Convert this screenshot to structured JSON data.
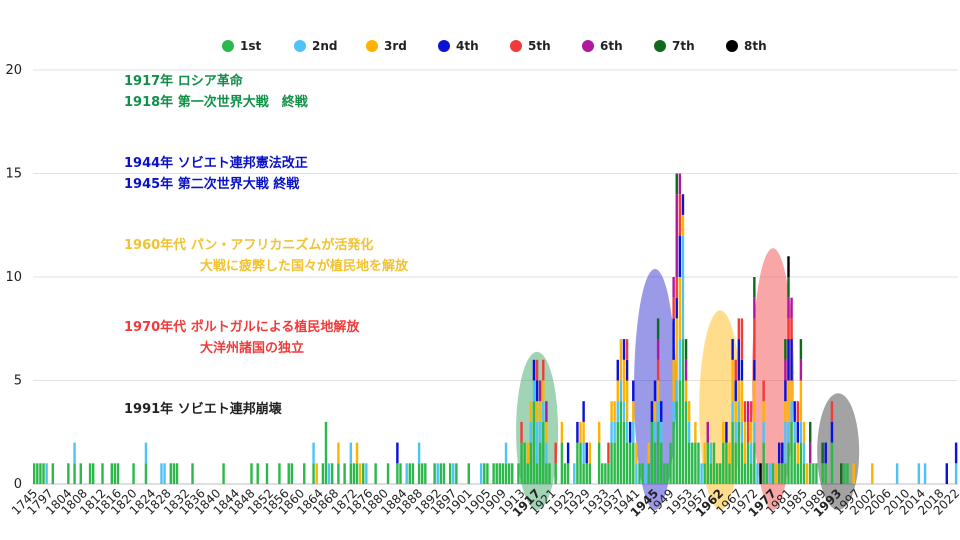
{
  "chart_data": {
    "type": "bar",
    "stacked": true,
    "title": "",
    "xlabel": "",
    "ylabel": "",
    "ylim": [
      0,
      20
    ],
    "yticks": [
      0,
      5,
      10,
      15,
      20
    ],
    "grid": "horizontal",
    "legend_position": "top",
    "xtick_labels": [
      "1745",
      "1797",
      "1804",
      "1808",
      "1812",
      "1816",
      "1820",
      "1824",
      "1828",
      "1832",
      "1836",
      "1840",
      "1844",
      "1848",
      "1852",
      "1856",
      "1860",
      "1864",
      "1868",
      "1872",
      "1876",
      "1880",
      "1884",
      "1888",
      "1892",
      "1897",
      "1901",
      "1905",
      "1909",
      "1913",
      "1917",
      "1921",
      "1925",
      "1929",
      "1933",
      "1937",
      "1941",
      "1945",
      "1949",
      "1953",
      "1957",
      "1962",
      "1967",
      "1972",
      "1977",
      "1981",
      "1985",
      "1989",
      "1993",
      "1997",
      "2002",
      "2006",
      "2010",
      "2014",
      "2018",
      "2022"
    ],
    "highlighted_ticks": [
      "1917",
      "1945",
      "1962",
      "1977",
      "1993"
    ],
    "series": [
      {
        "name": "1st",
        "color": "#2DB84B"
      },
      {
        "name": "2nd",
        "color": "#4FC3F7"
      },
      {
        "name": "3rd",
        "color": "#FFB300"
      },
      {
        "name": "4th",
        "color": "#0A12D6"
      },
      {
        "name": "5th",
        "color": "#F23A3A"
      },
      {
        "name": "6th",
        "color": "#B0189E"
      },
      {
        "name": "7th",
        "color": "#106A1C"
      },
      {
        "name": "8th",
        "color": "#000000"
      }
    ],
    "bars": [
      [
        1
      ],
      [
        1
      ],
      [
        1
      ],
      [
        1
      ],
      [
        0,
        1
      ],
      [
        0
      ],
      [
        1
      ],
      [
        0
      ],
      [
        0
      ],
      [
        0
      ],
      [
        0
      ],
      [
        1
      ],
      [
        0
      ],
      [
        1,
        1
      ],
      [
        0
      ],
      [
        1
      ],
      [
        0
      ],
      [
        0
      ],
      [
        1
      ],
      [
        1
      ],
      [
        0
      ],
      [
        0
      ],
      [
        1
      ],
      [
        0
      ],
      [
        0
      ],
      [
        1
      ],
      [
        1
      ],
      [
        1
      ],
      [
        0
      ],
      [
        0
      ],
      [
        0
      ],
      [
        0
      ],
      [
        1
      ],
      [
        0
      ],
      [
        0
      ],
      [
        0
      ],
      [
        1,
        1
      ],
      [
        0
      ],
      [
        0
      ],
      [
        0
      ],
      [
        0
      ],
      [
        0,
        1
      ],
      [
        0,
        1
      ],
      [
        0
      ],
      [
        1
      ],
      [
        1
      ],
      [
        1
      ],
      [
        0
      ],
      [
        0
      ],
      [
        0
      ],
      [
        0
      ],
      [
        1
      ],
      [
        0
      ],
      [
        0
      ],
      [
        0
      ],
      [
        0
      ],
      [
        0
      ],
      [
        0
      ],
      [
        0
      ],
      [
        0
      ],
      [
        0
      ],
      [
        1
      ],
      [
        0
      ],
      [
        0
      ],
      [
        0
      ],
      [
        0
      ],
      [
        0
      ],
      [
        0
      ],
      [
        0
      ],
      [
        0
      ],
      [
        1
      ],
      [
        0
      ],
      [
        1
      ],
      [
        0
      ],
      [
        0
      ],
      [
        1
      ],
      [
        0
      ],
      [
        0
      ],
      [
        0
      ],
      [
        1
      ],
      [
        0
      ],
      [
        0
      ],
      [
        1
      ],
      [
        1
      ],
      [
        0
      ],
      [
        0
      ],
      [
        0
      ],
      [
        1
      ],
      [
        0
      ],
      [
        0
      ],
      [
        1,
        1
      ],
      [
        0,
        0,
        1
      ],
      [
        0
      ],
      [
        1
      ],
      [
        3
      ],
      [
        0,
        1
      ],
      [
        1
      ],
      [
        0
      ],
      [
        1,
        0,
        1
      ],
      [
        0
      ],
      [
        1
      ],
      [
        0
      ],
      [
        1,
        1
      ],
      [
        1
      ],
      [
        1,
        0,
        1
      ],
      [
        0,
        0,
        1
      ],
      [
        1
      ],
      [
        0,
        1
      ],
      [
        0
      ],
      [
        0
      ],
      [
        1
      ],
      [
        0
      ],
      [
        0
      ],
      [
        0
      ],
      [
        1
      ],
      [
        0
      ],
      [
        0
      ],
      [
        1,
        0,
        0,
        1
      ],
      [
        1
      ],
      [
        0
      ],
      [
        0,
        1
      ],
      [
        1
      ],
      [
        1
      ],
      [
        0
      ],
      [
        1,
        1
      ],
      [
        1
      ],
      [
        1
      ],
      [
        0
      ],
      [
        0
      ],
      [
        1
      ],
      [
        0,
        1
      ],
      [
        1
      ],
      [
        1
      ],
      [
        0
      ],
      [
        1
      ],
      [
        0,
        1
      ],
      [
        1
      ],
      [
        0
      ],
      [
        0
      ],
      [
        0
      ],
      [
        1
      ],
      [
        0
      ],
      [
        0
      ],
      [
        0
      ],
      [
        0,
        1
      ],
      [
        1
      ],
      [
        1
      ],
      [
        0
      ],
      [
        1
      ],
      [
        1
      ],
      [
        1
      ],
      [
        1
      ],
      [
        1,
        1
      ],
      [
        1
      ],
      [
        1
      ],
      [
        0
      ],
      [
        1
      ],
      [
        2,
        0,
        0,
        0,
        1
      ],
      [
        2
      ],
      [
        1,
        0,
        1
      ],
      [
        2,
        1,
        1
      ],
      [
        4,
        1,
        0,
        1
      ],
      [
        1,
        2,
        1,
        1,
        1
      ],
      [
        2,
        1,
        1,
        0,
        0,
        1
      ],
      [
        3,
        1,
        1,
        0,
        1
      ],
      [
        1,
        1,
        1,
        0,
        0,
        1
      ],
      [
        1
      ],
      [
        0
      ],
      [
        1,
        0,
        0,
        0,
        1
      ],
      [
        0
      ],
      [
        2,
        0,
        1
      ],
      [
        1
      ],
      [
        1,
        0,
        0,
        1
      ],
      [
        0
      ],
      [
        0,
        1
      ],
      [
        2,
        0,
        0,
        1
      ],
      [
        2,
        0,
        1
      ],
      [
        1,
        1,
        1,
        1
      ],
      [
        1,
        0,
        0,
        1
      ],
      [
        1,
        0,
        1
      ],
      [
        0
      ],
      [
        0
      ],
      [
        2,
        0,
        1
      ],
      [
        1
      ],
      [
        1
      ],
      [
        1,
        0,
        0,
        0,
        1
      ],
      [
        2,
        1,
        1,
        0
      ],
      [
        2,
        1,
        1,
        0
      ],
      [
        3,
        1,
        1,
        1
      ],
      [
        4,
        1,
        2
      ],
      [
        3,
        1,
        2,
        1
      ],
      [
        2,
        1,
        2,
        1,
        1
      ],
      [
        2,
        0,
        0,
        1
      ],
      [
        2,
        1,
        1,
        1
      ],
      [
        0,
        1,
        1
      ],
      [
        1
      ],
      [
        1
      ],
      [
        0,
        1
      ],
      [
        1,
        0,
        1
      ],
      [
        3,
        0,
        0,
        1
      ],
      [
        2,
        1,
        1,
        1
      ],
      [
        3,
        1,
        1,
        0,
        1,
        1,
        1
      ],
      [
        2,
        1,
        0,
        1
      ],
      [
        1
      ],
      [
        1
      ],
      [
        2
      ],
      [
        3,
        1,
        2,
        2,
        1,
        1
      ],
      [
        4,
        1,
        3,
        1,
        1,
        4,
        1
      ],
      [
        5,
        2,
        3,
        2,
        2,
        1
      ],
      [
        7,
        5,
        1,
        1
      ],
      [
        4,
        0,
        1,
        0,
        0,
        1,
        1
      ],
      [
        2,
        1,
        1
      ],
      [
        2
      ],
      [
        2,
        0,
        1
      ],
      [
        2
      ],
      [
        0,
        1
      ],
      [
        1,
        0,
        1
      ],
      [
        2,
        0,
        0,
        0,
        0,
        1
      ],
      [
        1,
        1
      ],
      [
        2
      ],
      [
        1
      ],
      [
        1
      ],
      [
        2,
        0,
        1
      ],
      [
        2,
        0,
        0,
        1
      ],
      [
        1,
        0,
        1
      ],
      [
        3,
        1,
        2,
        1
      ],
      [
        2,
        1,
        1,
        1,
        1
      ],
      [
        3,
        1,
        1,
        2,
        1
      ],
      [
        2,
        1,
        2,
        1,
        2
      ],
      [
        1,
        0,
        2,
        0,
        1
      ],
      [
        2,
        0,
        0,
        0,
        1,
        1
      ],
      [
        1,
        1,
        1,
        0,
        1
      ],
      [
        2,
        1,
        2,
        1,
        2,
        1,
        1
      ],
      [
        0,
        1
      ],
      [
        0,
        0,
        0,
        0,
        0,
        0,
        0,
        1
      ],
      [
        2,
        1,
        1,
        0,
        1
      ],
      [
        1
      ],
      [
        0,
        1
      ],
      [
        1
      ],
      [
        0,
        0,
        1
      ],
      [
        1,
        0,
        0,
        1
      ],
      [
        1,
        0,
        0,
        1
      ],
      [
        1,
        2,
        1,
        1,
        0,
        1,
        1
      ],
      [
        2,
        1,
        2,
        2,
        1,
        1,
        1,
        1
      ],
      [
        3,
        1,
        1,
        2,
        1,
        1
      ],
      [
        2,
        1,
        0,
        1
      ],
      [
        1,
        0,
        1,
        1,
        1
      ],
      [
        2,
        1,
        2,
        0,
        0,
        1,
        1
      ],
      [
        1,
        1,
        1
      ],
      [
        0,
        0,
        1
      ],
      [
        1,
        0,
        0,
        0,
        0,
        1,
        1
      ],
      [
        1
      ],
      [
        1
      ],
      [
        0
      ],
      [
        1,
        0,
        0,
        0,
        0,
        0,
        1
      ],
      [
        1,
        0,
        0,
        1
      ],
      [
        0
      ],
      [
        2,
        0,
        0,
        1,
        1
      ],
      [
        0
      ],
      [
        0
      ],
      [
        0,
        0,
        0,
        0,
        0,
        0,
        1
      ],
      [
        1
      ],
      [
        1
      ],
      [
        0
      ],
      [
        0,
        0,
        1
      ],
      [
        0
      ],
      [
        0
      ],
      [
        0
      ],
      [
        0
      ],
      [
        0
      ],
      [
        0,
        0,
        1
      ],
      [
        0
      ],
      [
        0
      ],
      [
        0
      ],
      [
        0
      ],
      [
        0
      ],
      [
        0
      ],
      [
        0
      ],
      [
        0,
        1
      ],
      [
        0
      ],
      [
        0
      ],
      [
        0
      ],
      [
        0
      ],
      [
        0
      ],
      [
        0
      ],
      [
        0,
        1
      ],
      [
        0
      ],
      [
        0,
        1
      ],
      [
        0
      ],
      [
        0
      ],
      [
        0
      ],
      [
        0
      ],
      [
        0
      ],
      [
        0
      ],
      [
        0,
        0,
        0,
        1
      ],
      [
        0
      ],
      [
        0
      ],
      [
        0,
        1,
        0,
        1
      ]
    ],
    "annotations": [
      {
        "lines": [
          "1917年 ロシア革命",
          "1918年 第一次世界大戦　終戦"
        ],
        "color": "#109048"
      },
      {
        "lines": [
          "1944年 ソビエト連邦憲法改正",
          "1945年 第二次世界大戦 終戦"
        ],
        "color": "#0A12C8"
      },
      {
        "lines": [
          "1960年代 パン・アフリカニズムが活発化",
          "大戦に疲弊した国々が植民地を解放"
        ],
        "color": "#F2C230"
      },
      {
        "lines": [
          "1970年代 ポルトガルによる植民地解放",
          "大洋州諸国の独立"
        ],
        "color": "#F23A3A"
      },
      {
        "lines": [
          "1991年 ソビエト連邦崩壊"
        ],
        "color": "#222222"
      }
    ],
    "highlight_regions": [
      {
        "label": "1917",
        "color": "#2E9E5B"
      },
      {
        "label": "1945",
        "color": "#1F1FCF"
      },
      {
        "label": "1962",
        "color": "#FFB300"
      },
      {
        "label": "1977",
        "color": "#F23A3A"
      },
      {
        "label": "1993",
        "color": "#333333"
      }
    ]
  }
}
